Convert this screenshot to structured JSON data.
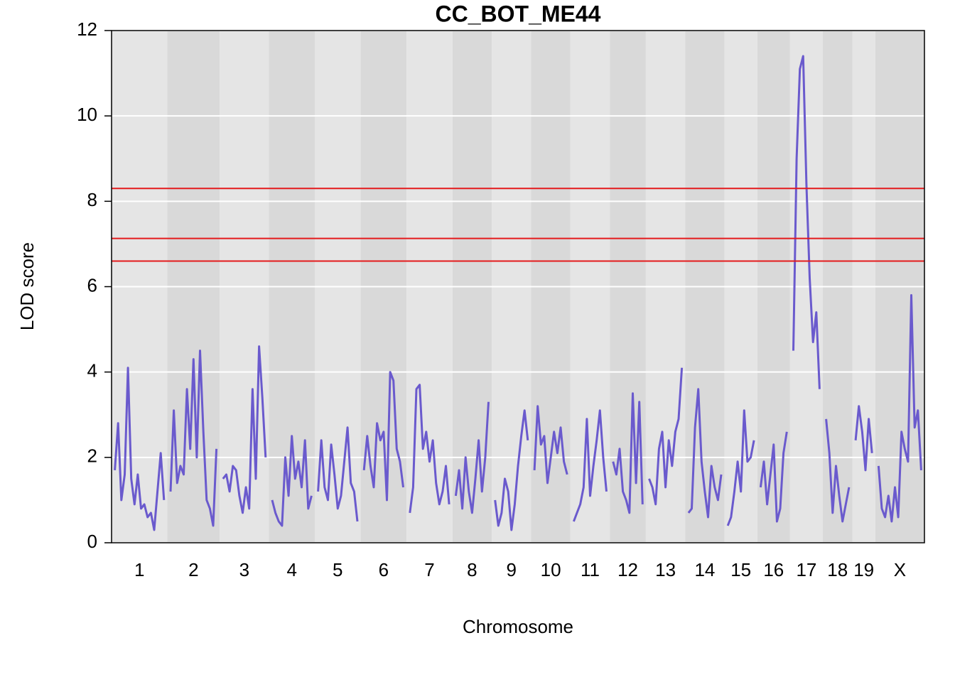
{
  "chart_data": {
    "type": "line",
    "title": "CC_BOT_ME44",
    "xlabel": "Chromosome",
    "ylabel": "LOD score",
    "ylim": [
      0,
      12
    ],
    "yticks": [
      0,
      2,
      4,
      6,
      8,
      10,
      12
    ],
    "grid": true,
    "color": "#6a5acd",
    "band_colors": [
      "#e5e5e5",
      "#d9d9d9"
    ],
    "threshold_color": "#e41a1c",
    "thresholds": [
      8.3,
      7.13,
      6.6
    ],
    "series": [
      {
        "name": "1",
        "values": [
          1.7,
          2.8,
          1.0,
          1.6,
          4.1,
          1.5,
          0.9,
          1.6,
          0.8,
          0.9,
          0.6,
          0.7,
          0.3,
          1.2,
          2.1,
          1.0
        ]
      },
      {
        "name": "2",
        "values": [
          1.2,
          3.1,
          1.4,
          1.8,
          1.6,
          3.6,
          2.2,
          4.3,
          2.0,
          4.5,
          2.6,
          1.0,
          0.8,
          0.4,
          2.2
        ]
      },
      {
        "name": "3",
        "values": [
          1.5,
          1.6,
          1.2,
          1.8,
          1.7,
          1.1,
          0.7,
          1.3,
          0.8,
          3.6,
          1.5,
          4.6,
          3.4,
          2.0
        ]
      },
      {
        "name": "4",
        "values": [
          1.0,
          0.7,
          0.5,
          0.4,
          2.0,
          1.1,
          2.5,
          1.5,
          1.9,
          1.3,
          2.4,
          0.8,
          1.1
        ]
      },
      {
        "name": "5",
        "values": [
          1.2,
          2.4,
          1.3,
          1.0,
          2.3,
          1.6,
          0.8,
          1.1,
          1.9,
          2.7,
          1.4,
          1.2,
          0.5
        ]
      },
      {
        "name": "6",
        "values": [
          1.7,
          2.5,
          1.8,
          1.3,
          2.8,
          2.4,
          2.6,
          1.0,
          4.0,
          3.8,
          2.2,
          1.9,
          1.3
        ]
      },
      {
        "name": "7",
        "values": [
          0.7,
          1.3,
          3.6,
          3.7,
          2.2,
          2.6,
          1.9,
          2.4,
          1.4,
          0.9,
          1.2,
          1.8,
          0.9
        ]
      },
      {
        "name": "8",
        "values": [
          1.1,
          1.7,
          0.8,
          2.0,
          1.2,
          0.7,
          1.5,
          2.4,
          1.2,
          2.0,
          3.3
        ]
      },
      {
        "name": "9",
        "values": [
          1.0,
          0.4,
          0.7,
          1.5,
          1.2,
          0.3,
          0.9,
          1.8,
          2.5,
          3.1,
          2.4
        ]
      },
      {
        "name": "10",
        "values": [
          1.7,
          3.2,
          2.3,
          2.5,
          1.4,
          2.0,
          2.6,
          2.1,
          2.7,
          1.9,
          1.6
        ]
      },
      {
        "name": "11",
        "values": [
          0.5,
          0.7,
          0.9,
          1.3,
          2.9,
          1.1,
          1.8,
          2.4,
          3.1,
          2.0,
          1.2
        ]
      },
      {
        "name": "12",
        "values": [
          1.9,
          1.6,
          2.2,
          1.2,
          1.0,
          0.7,
          3.5,
          1.4,
          3.3,
          0.9
        ]
      },
      {
        "name": "13",
        "values": [
          1.5,
          1.3,
          0.9,
          2.2,
          2.6,
          1.3,
          2.4,
          1.8,
          2.6,
          2.9,
          4.1
        ]
      },
      {
        "name": "14",
        "values": [
          0.7,
          0.8,
          2.7,
          3.6,
          1.9,
          1.2,
          0.6,
          1.8,
          1.3,
          1.0,
          1.6
        ]
      },
      {
        "name": "15",
        "values": [
          0.4,
          0.6,
          1.2,
          1.9,
          1.2,
          3.1,
          1.9,
          2.0,
          2.4
        ]
      },
      {
        "name": "16",
        "values": [
          1.3,
          1.9,
          0.9,
          1.6,
          2.3,
          0.5,
          0.8,
          2.1,
          2.6
        ]
      },
      {
        "name": "17",
        "values": [
          4.5,
          9.0,
          11.1,
          11.4,
          8.4,
          6.2,
          4.7,
          5.4,
          3.6
        ]
      },
      {
        "name": "18",
        "values": [
          2.9,
          2.1,
          0.7,
          1.8,
          1.1,
          0.5,
          0.9,
          1.3
        ]
      },
      {
        "name": "19",
        "values": [
          2.4,
          3.2,
          2.6,
          1.7,
          2.9,
          2.1
        ]
      },
      {
        "name": "X",
        "values": [
          1.8,
          0.8,
          0.6,
          1.1,
          0.5,
          1.3,
          0.6,
          2.6,
          2.2,
          1.9,
          5.8,
          2.7,
          3.1,
          1.7
        ]
      }
    ]
  }
}
